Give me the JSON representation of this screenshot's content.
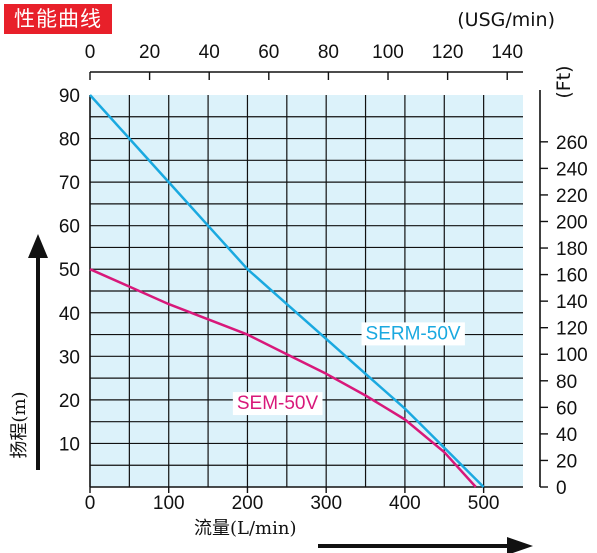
{
  "title": "性能曲线",
  "chart_data": {
    "type": "line",
    "xlabel": "流量(L/min)",
    "ylabel": "扬程(m)",
    "top_axis_label": "(USG/min)",
    "right_axis_label": "(Ft)",
    "xlim": [
      0,
      550
    ],
    "ylim": [
      0,
      90
    ],
    "x_ticks": [
      0,
      100,
      200,
      300,
      400,
      500
    ],
    "y_ticks": [
      10,
      20,
      30,
      40,
      50,
      60,
      70,
      80,
      90
    ],
    "top_ticks": [
      0,
      20,
      40,
      60,
      80,
      100,
      120,
      140
    ],
    "right_ticks": [
      0,
      20,
      40,
      60,
      80,
      100,
      120,
      140,
      160,
      180,
      200,
      220,
      240,
      260
    ],
    "grid": true,
    "series": [
      {
        "name": "SERM-50V",
        "color": "#1aa9e0",
        "x": [
          0,
          50,
          100,
          150,
          200,
          250,
          300,
          350,
          400,
          450,
          500
        ],
        "y": [
          90,
          80,
          70,
          60,
          50,
          42,
          34,
          26,
          18,
          9,
          0
        ]
      },
      {
        "name": "SEM-50V",
        "color": "#d8187a",
        "x": [
          0,
          50,
          100,
          150,
          200,
          250,
          300,
          350,
          400,
          450,
          490
        ],
        "y": [
          50,
          46,
          42,
          38.5,
          35,
          30.5,
          26,
          21,
          15.5,
          8,
          0
        ]
      }
    ]
  }
}
